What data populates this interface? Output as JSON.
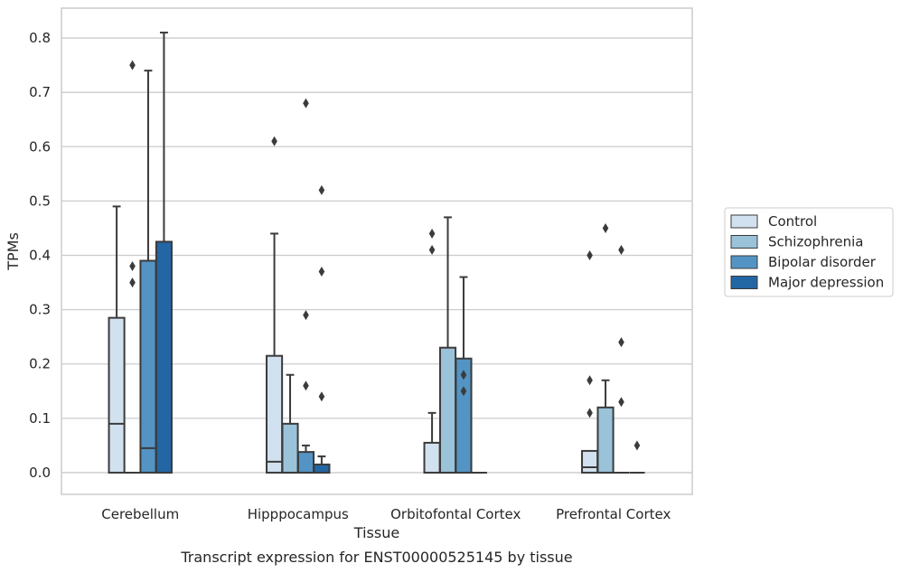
{
  "caption": "Transcript expression for ENST00000525145 by tissue",
  "chart_data": {
    "type": "box",
    "xlabel": "Tissue",
    "ylabel": "TPMs",
    "ylim": [
      -0.04,
      0.855
    ],
    "yticks": [
      0.0,
      0.1,
      0.2,
      0.3,
      0.4,
      0.5,
      0.6,
      0.7,
      0.8
    ],
    "ytick_labels": [
      "0.0",
      "0.1",
      "0.2",
      "0.3",
      "0.4",
      "0.5",
      "0.6",
      "0.7",
      "0.8"
    ],
    "grid": true,
    "legend_position": "right",
    "categories": [
      "Cerebellum",
      "Hipppocampus",
      "Orbitofontal Cortex",
      "Prefrontal Cortex"
    ],
    "series": [
      {
        "name": "Control",
        "color": "#d2e1f0",
        "boxes": [
          {
            "q1": 0.0,
            "median": 0.09,
            "q3": 0.285,
            "whisker_low": 0.0,
            "whisker_high": 0.49,
            "outliers": []
          },
          {
            "q1": 0.0,
            "median": 0.02,
            "q3": 0.215,
            "whisker_low": 0.0,
            "whisker_high": 0.44,
            "outliers": [
              0.61
            ]
          },
          {
            "q1": 0.0,
            "median": 0.0,
            "q3": 0.055,
            "whisker_low": 0.0,
            "whisker_high": 0.11,
            "outliers": [
              0.41,
              0.44
            ]
          },
          {
            "q1": 0.0,
            "median": 0.01,
            "q3": 0.04,
            "whisker_low": 0.0,
            "whisker_high": 0.04,
            "outliers": [
              0.11,
              0.17,
              0.4
            ]
          }
        ]
      },
      {
        "name": "Schizophrenia",
        "color": "#9ac2d9",
        "boxes": [
          {
            "q1": 0.0,
            "median": 0.0,
            "q3": 0.0,
            "whisker_low": 0.0,
            "whisker_high": 0.0,
            "outliers": [
              0.35,
              0.38,
              0.75
            ]
          },
          {
            "q1": 0.0,
            "median": 0.0,
            "q3": 0.09,
            "whisker_low": 0.0,
            "whisker_high": 0.18,
            "outliers": []
          },
          {
            "q1": 0.0,
            "median": 0.0,
            "q3": 0.23,
            "whisker_low": 0.0,
            "whisker_high": 0.47,
            "outliers": []
          },
          {
            "q1": 0.0,
            "median": 0.0,
            "q3": 0.12,
            "whisker_low": 0.0,
            "whisker_high": 0.17,
            "outliers": [
              0.45
            ]
          }
        ]
      },
      {
        "name": "Bipolar disorder",
        "color": "#5394c4",
        "boxes": [
          {
            "q1": 0.0,
            "median": 0.045,
            "q3": 0.39,
            "whisker_low": 0.0,
            "whisker_high": 0.74,
            "outliers": []
          },
          {
            "q1": 0.0,
            "median": 0.0,
            "q3": 0.038,
            "whisker_low": 0.0,
            "whisker_high": 0.05,
            "outliers": [
              0.16,
              0.29,
              0.68
            ]
          },
          {
            "q1": 0.0,
            "median": 0.0,
            "q3": 0.21,
            "whisker_low": 0.0,
            "whisker_high": 0.36,
            "outliers": [
              0.15,
              0.18
            ]
          },
          {
            "q1": 0.0,
            "median": 0.0,
            "q3": 0.0,
            "whisker_low": 0.0,
            "whisker_high": 0.0,
            "outliers": [
              0.13,
              0.24,
              0.41
            ]
          }
        ]
      },
      {
        "name": "Major depression",
        "color": "#2366a4",
        "boxes": [
          {
            "q1": 0.0,
            "median": 0.0,
            "q3": 0.425,
            "whisker_low": 0.0,
            "whisker_high": 0.81,
            "outliers": []
          },
          {
            "q1": 0.0,
            "median": 0.0,
            "q3": 0.015,
            "whisker_low": 0.0,
            "whisker_high": 0.03,
            "outliers": [
              0.14,
              0.37,
              0.52
            ]
          },
          {
            "q1": 0.0,
            "median": 0.0,
            "q3": 0.0,
            "whisker_low": 0.0,
            "whisker_high": 0.0,
            "outliers": []
          },
          {
            "q1": 0.0,
            "median": 0.0,
            "q3": 0.0,
            "whisker_low": 0.0,
            "whisker_high": 0.0,
            "outliers": [
              0.05
            ]
          }
        ]
      }
    ]
  }
}
